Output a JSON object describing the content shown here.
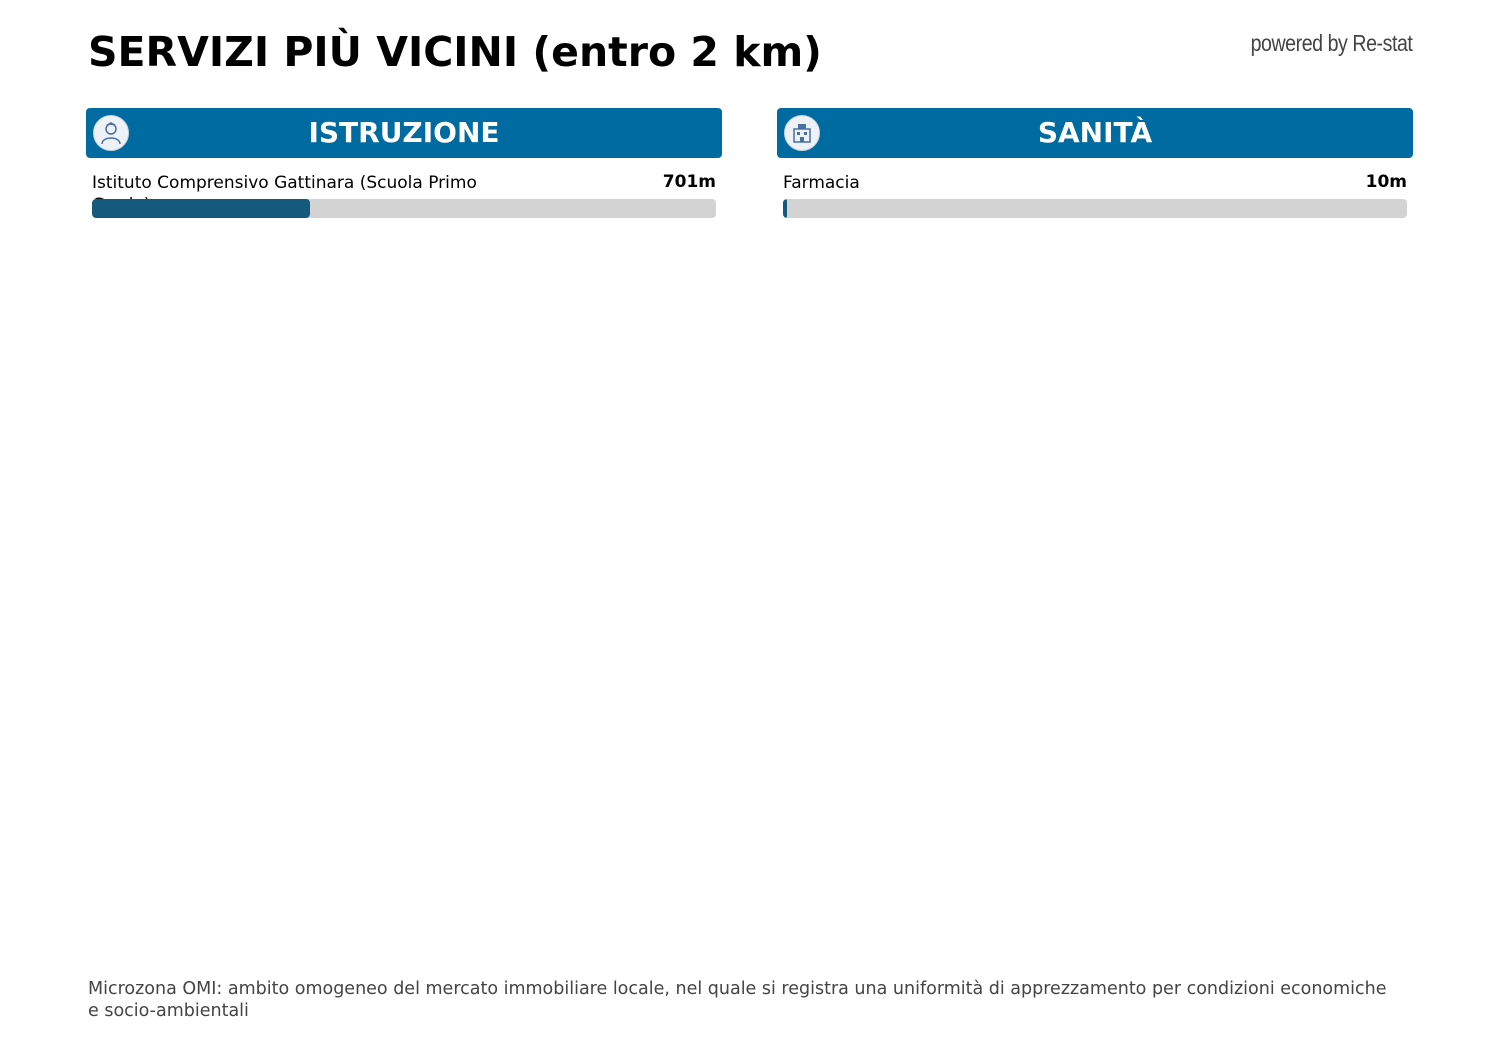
{
  "title": "SERVIZI PIÙ VICINI (entro 2 km)",
  "powered_by": "powered by Re-stat",
  "colors": {
    "header": "#006ba1",
    "bar_fill": "#155a7c",
    "bar_track": "#d3d3d3"
  },
  "sections": [
    {
      "label": "ISTRUZIONE",
      "icon": "student-icon",
      "items": [
        {
          "name": "Istituto Comprensivo Gattinara (Scuola Primo Grado)",
          "distance": "701m",
          "fill_percent": 35
        }
      ]
    },
    {
      "label": "SANITÀ",
      "icon": "hospital-icon",
      "items": [
        {
          "name": "Farmacia",
          "distance": "10m",
          "fill_percent": 0.5
        }
      ]
    }
  ],
  "footnote": "Microzona OMI: ambito omogeneo del mercato immobiliare locale, nel quale si registra una uniformità di apprezzamento per condizioni economiche e socio-ambientali"
}
